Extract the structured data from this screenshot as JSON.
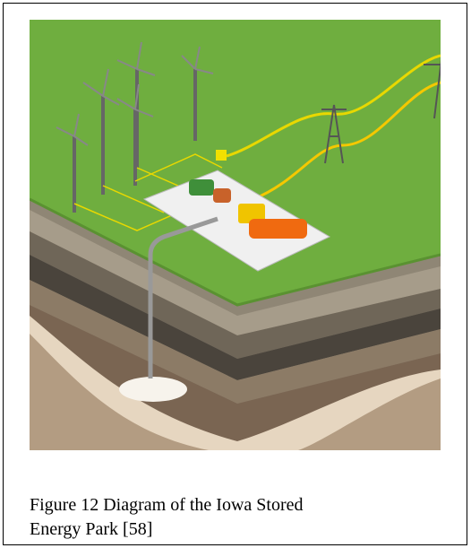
{
  "figure": {
    "caption": "Figure 12 Diagram of the Iowa Stored Energy Park [58]"
  }
}
